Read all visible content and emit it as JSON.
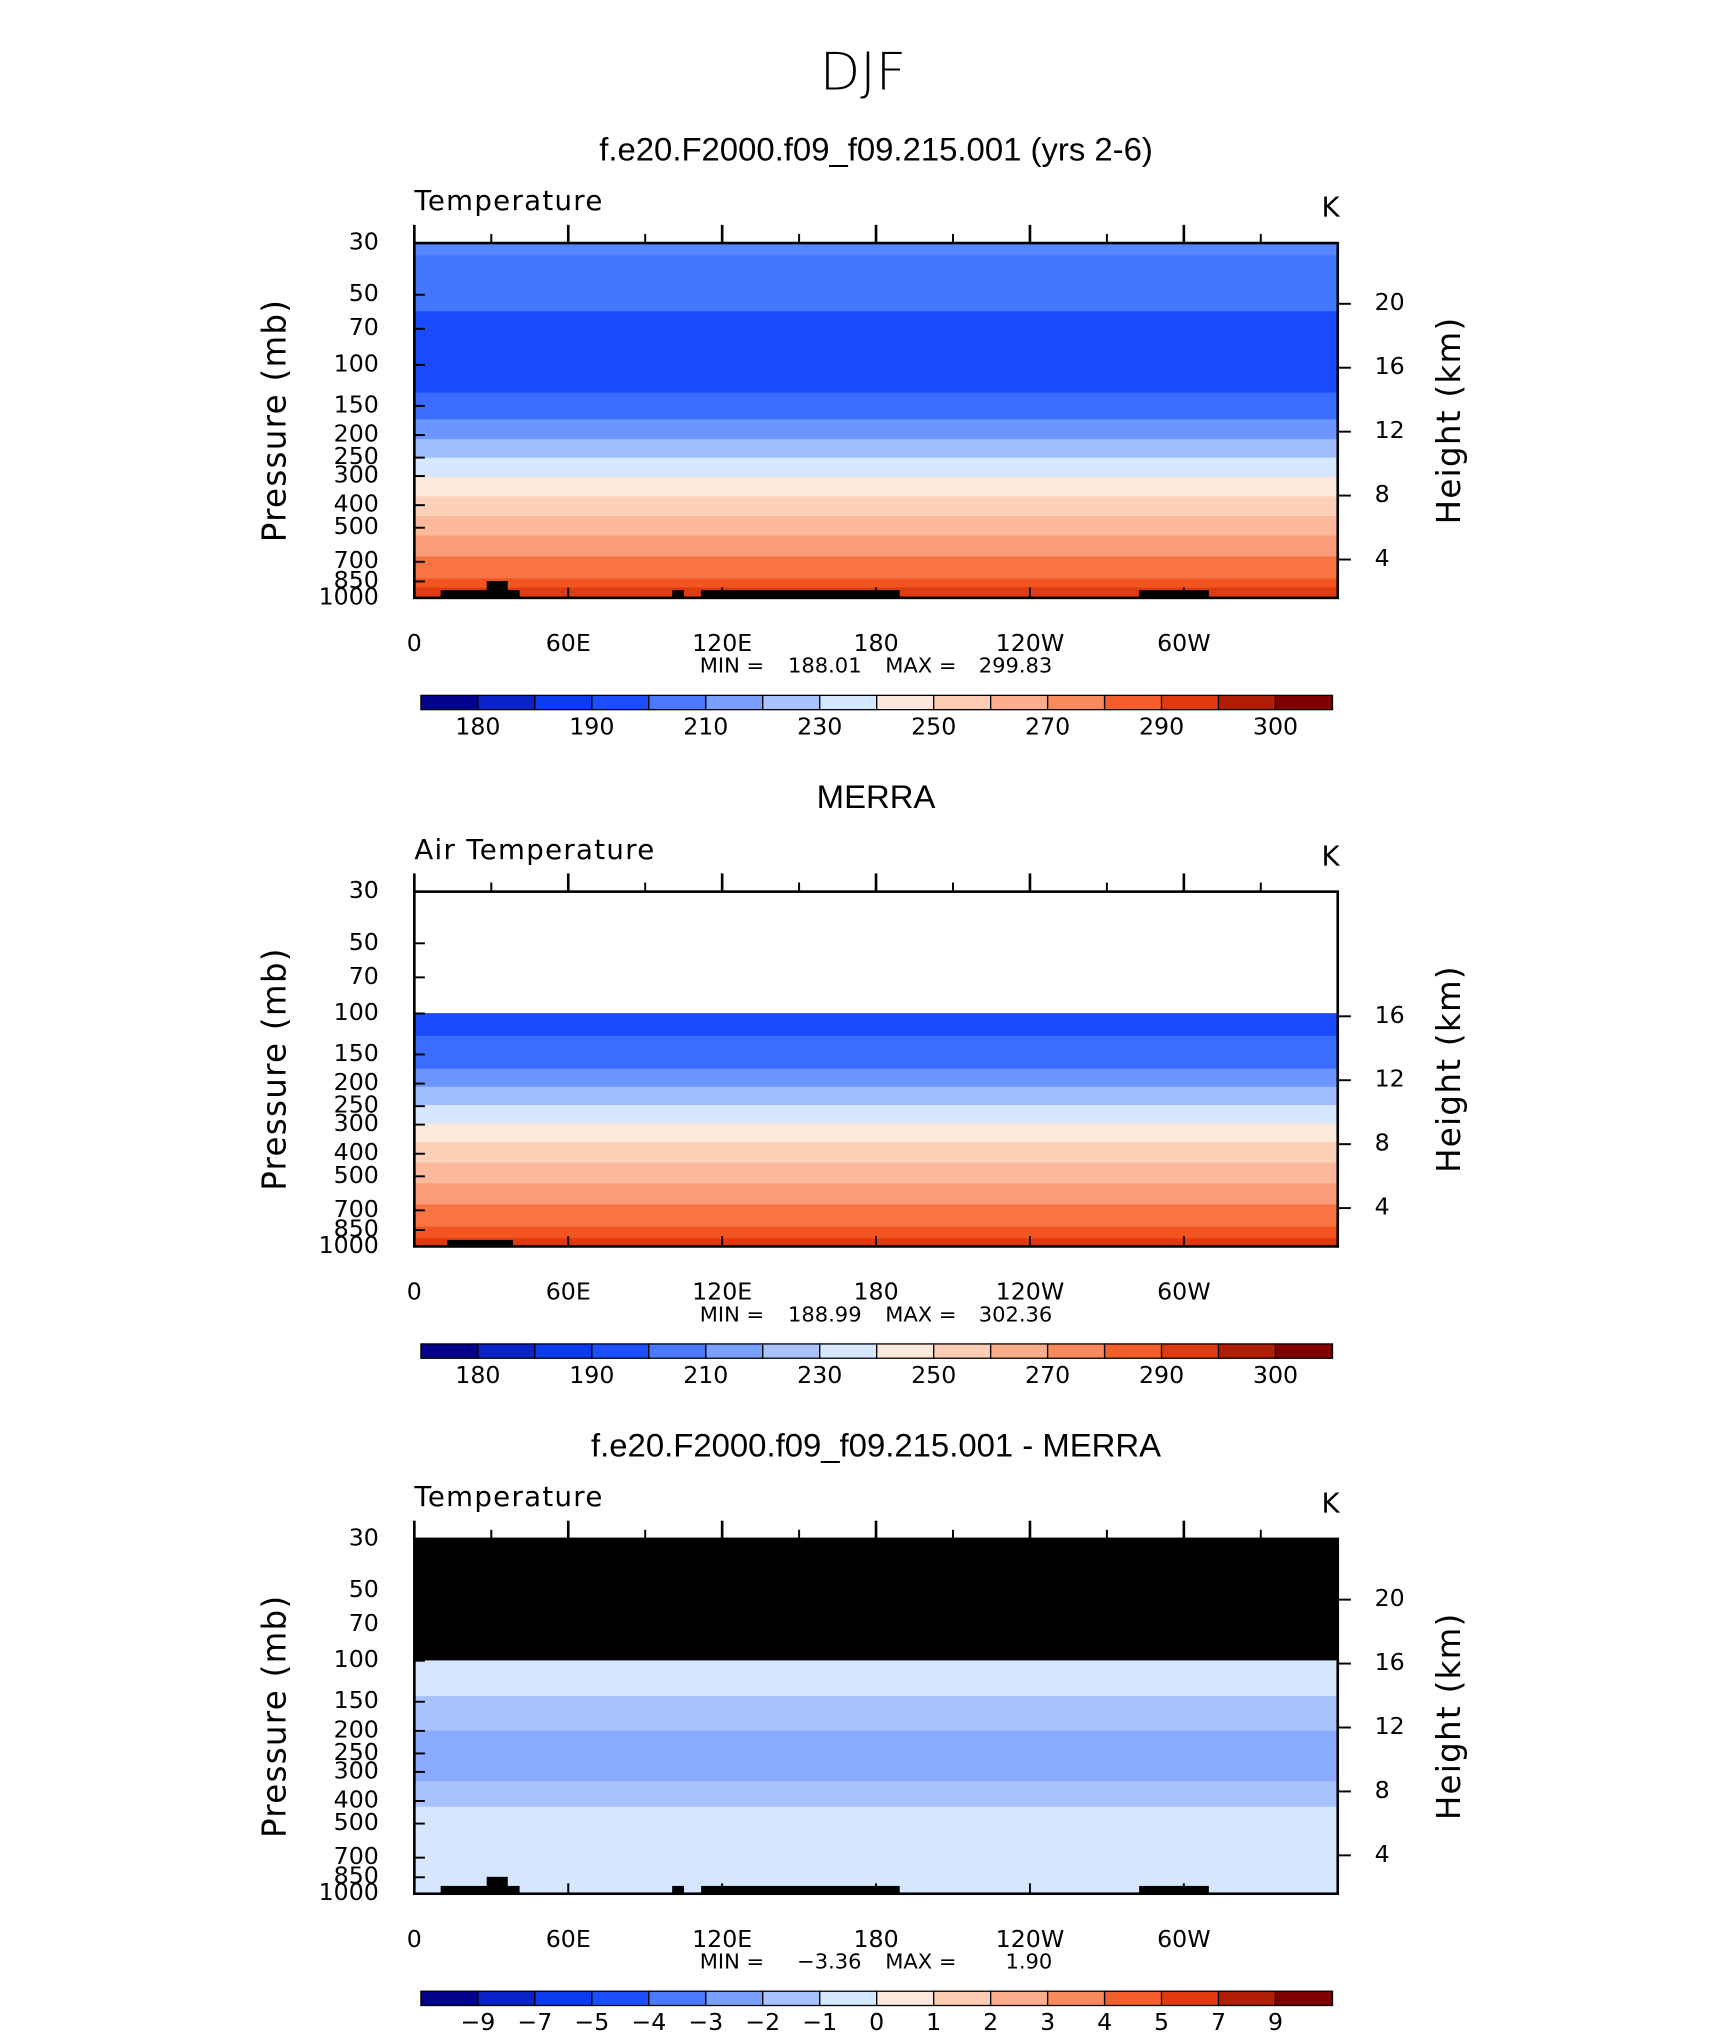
{
  "title": "DJF",
  "chart_data": [
    {
      "type": "contour",
      "title": "f.e20.F2000.f09_f09.215.001 (yrs 2-6)",
      "left_label": "Temperature",
      "units": "K",
      "ylabel": "Pressure (mb)",
      "y2label": "Height (km)",
      "xlim": [
        0,
        360
      ],
      "xticks": [
        0,
        {
          "value": 60,
          "label": "60E"
        },
        {
          "value": 120,
          "label": "120E"
        },
        180,
        {
          "value": 240,
          "label": "120W"
        },
        {
          "value": 300,
          "label": "60W"
        }
      ],
      "xminorticks": [
        30,
        90,
        150,
        210,
        270,
        330
      ],
      "ylim": [
        1000,
        30
      ],
      "ylog": true,
      "yticks": [
        30,
        50,
        70,
        100,
        150,
        200,
        250,
        300,
        400,
        500,
        700,
        850,
        1000
      ],
      "y2lim": [
        1.6,
        23.8
      ],
      "y2ticks": [
        4,
        8,
        12,
        16,
        20
      ],
      "band_edges": [
        30,
        34,
        59,
        132,
        172,
        209,
        251,
        304,
        368,
        447,
        542,
        666,
        828,
        906,
        1000
      ],
      "band_colors": [
        "#5585ff",
        "#4477ff",
        "#1a4cff",
        "#3a6cff",
        "#6b96ff",
        "#a0bfff",
        "#d6e6ff",
        "#fde9db",
        "#fdd0b8",
        "#fbb89a",
        "#fa9c77",
        "#f97444",
        "#f35520",
        "#e03a10"
      ],
      "stats": {
        "labels": [
          "MIN =",
          "MAX ="
        ],
        "values": [
          188.01,
          299.83
        ]
      },
      "colorbar": {
        "colors": [
          "#02028c",
          "#0a22c8",
          "#0c3cf0",
          "#1c50ff",
          "#4a7bff",
          "#7aa0ff",
          "#a9c3ff",
          "#d6e8ff",
          "#fde9dc",
          "#fcccb4",
          "#fbad8c",
          "#f98a5e",
          "#f55f2c",
          "#e03a10",
          "#b01e08",
          "#800000"
        ],
        "ticks": [
          180,
          190,
          210,
          230,
          250,
          270,
          290,
          300
        ]
      }
    },
    {
      "type": "contour",
      "title": "MERRA",
      "left_label": "Air Temperature",
      "units": "K",
      "ylabel": "Pressure (mb)",
      "y2label": "Height (km)",
      "xlim": [
        0,
        360
      ],
      "xticks": [
        0,
        {
          "value": 60,
          "label": "60E"
        },
        {
          "value": 120,
          "label": "120E"
        },
        180,
        {
          "value": 240,
          "label": "120W"
        },
        {
          "value": 300,
          "label": "60W"
        }
      ],
      "xminorticks": [
        30,
        90,
        150,
        210,
        270,
        330
      ],
      "ylim": [
        1000,
        30
      ],
      "ylog": true,
      "yticks": [
        30,
        50,
        70,
        100,
        150,
        200,
        250,
        300,
        400,
        500,
        700,
        850,
        1000
      ],
      "y2lim": [
        1.6,
        23.8
      ],
      "y2ticks": [
        4,
        8,
        12,
        16
      ],
      "band_edges": [
        30,
        100,
        125,
        173,
        207,
        248,
        298,
        357,
        438,
        538,
        662,
        824,
        925,
        1000
      ],
      "band_colors": [
        "#ffffff",
        "#1a4cff",
        "#3a6cff",
        "#6b96ff",
        "#a0bfff",
        "#d6e6ff",
        "#fde9db",
        "#fdd0b8",
        "#fbb89a",
        "#fa9c77",
        "#f97444",
        "#f35520",
        "#e03a10"
      ],
      "stats": {
        "labels": [
          "MIN =",
          "MAX ="
        ],
        "values": [
          188.99,
          302.36
        ]
      },
      "colorbar": {
        "colors": [
          "#02028c",
          "#0a22c8",
          "#0c3cf0",
          "#1c50ff",
          "#4a7bff",
          "#7aa0ff",
          "#a9c3ff",
          "#d6e8ff",
          "#fde9dc",
          "#fcccb4",
          "#fbad8c",
          "#f98a5e",
          "#f55f2c",
          "#e03a10",
          "#b01e08",
          "#800000"
        ],
        "ticks": [
          180,
          190,
          210,
          230,
          250,
          270,
          290,
          300
        ]
      }
    },
    {
      "type": "contour",
      "title": "f.e20.F2000.f09_f09.215.001 - MERRA",
      "left_label": "Temperature",
      "units": "K",
      "ylabel": "Pressure (mb)",
      "y2label": "Height (km)",
      "xlim": [
        0,
        360
      ],
      "xticks": [
        0,
        {
          "value": 60,
          "label": "60E"
        },
        {
          "value": 120,
          "label": "120E"
        },
        180,
        {
          "value": 240,
          "label": "120W"
        },
        {
          "value": 300,
          "label": "60W"
        }
      ],
      "xminorticks": [
        30,
        90,
        150,
        210,
        270,
        330
      ],
      "ylim": [
        1000,
        30
      ],
      "ylog": true,
      "yticks": [
        30,
        50,
        70,
        100,
        150,
        200,
        250,
        300,
        400,
        500,
        700,
        850,
        1000
      ],
      "y2lim": [
        1.6,
        23.8
      ],
      "y2ticks": [
        4,
        8,
        12,
        16,
        20
      ],
      "band_edges": [
        30,
        100,
        142,
        200,
        330,
        425,
        1000
      ],
      "band_colors": [
        "#000000",
        "#d6e6ff",
        "#a9c3ff",
        "#8aabff",
        "#a9c3ff",
        "#d6e6ff"
      ],
      "stats": {
        "labels": [
          "MIN =",
          "MAX ="
        ],
        "values": [
          -3.36,
          1.9
        ],
        "value_labels": [
          "−3.36",
          "1.90"
        ]
      },
      "colorbar": {
        "colors": [
          "#02028c",
          "#0a22c8",
          "#0c3cf0",
          "#1c50ff",
          "#4a7bff",
          "#7aa0ff",
          "#a9c3ff",
          "#d6e8ff",
          "#fde9dc",
          "#fcccb4",
          "#fbad8c",
          "#f98a5e",
          "#f55f2c",
          "#e03a10",
          "#b01e08",
          "#800000"
        ],
        "ticks": [
          {
            "value": -9,
            "label": "−9"
          },
          {
            "value": -7,
            "label": "−7"
          },
          {
            "value": -5,
            "label": "−5"
          },
          {
            "value": -4,
            "label": "−4"
          },
          {
            "value": -3,
            "label": "−3"
          },
          {
            "value": -2,
            "label": "−2"
          },
          {
            "value": -1,
            "label": "−1"
          },
          0,
          1,
          2,
          3,
          4,
          5,
          7,
          9
        ]
      }
    }
  ]
}
